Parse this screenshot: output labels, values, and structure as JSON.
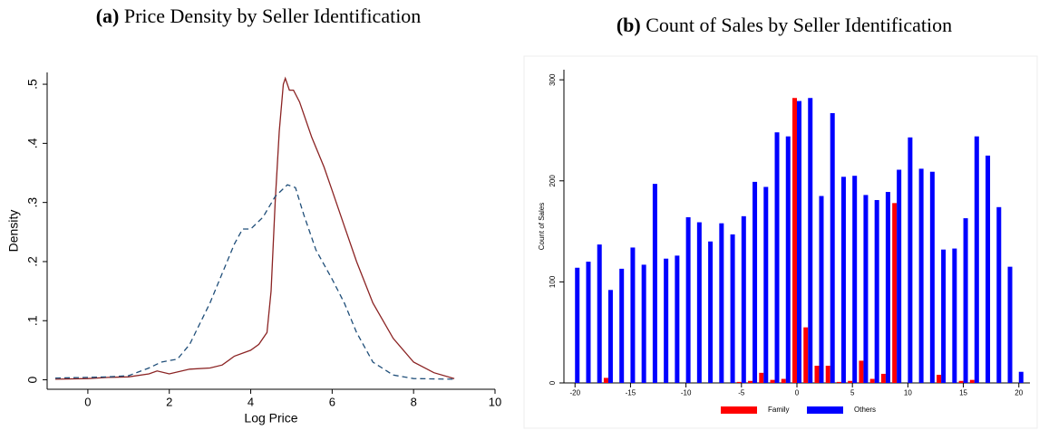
{
  "chart_data": [
    {
      "type": "line",
      "panel_label": "(a)",
      "title": "Price Density by Seller Identification",
      "x_label": "Log Price",
      "y_label": "Density",
      "xlim": [
        -1,
        10
      ],
      "ylim": [
        -0.016,
        0.52
      ],
      "xticks": [
        0,
        2,
        4,
        6,
        8,
        10
      ],
      "yticks": [
        0,
        {
          "value": 0.1,
          "label": ".1"
        },
        {
          "value": 0.2,
          "label": ".2"
        },
        {
          "value": 0.3,
          "label": ".3"
        },
        {
          "value": 0.4,
          "label": ".4"
        },
        {
          "value": 0.5,
          "label": ".5"
        }
      ],
      "series": [
        {
          "color": "#8b2323",
          "dash": false,
          "x": [
            -0.8,
            0,
            0.5,
            1,
            1.5,
            1.7,
            2,
            2.5,
            3,
            3.3,
            3.6,
            4,
            4.2,
            4.4,
            4.5,
            4.6,
            4.7,
            4.8,
            4.85,
            4.95,
            5.05,
            5.2,
            5.5,
            5.8,
            6,
            6.3,
            6.6,
            7,
            7.5,
            8,
            8.5,
            9
          ],
          "values": [
            0.001,
            0.002,
            0.004,
            0.005,
            0.01,
            0.015,
            0.01,
            0.018,
            0.02,
            0.025,
            0.04,
            0.05,
            0.06,
            0.08,
            0.15,
            0.3,
            0.42,
            0.5,
            0.51,
            0.49,
            0.49,
            0.47,
            0.41,
            0.36,
            0.32,
            0.26,
            0.2,
            0.13,
            0.07,
            0.03,
            0.012,
            0.002
          ]
        },
        {
          "color": "#1f4e79",
          "dash": true,
          "x": [
            -0.8,
            0,
            0.5,
            1,
            1.5,
            1.8,
            2.2,
            2.5,
            3,
            3.3,
            3.6,
            3.8,
            4,
            4.3,
            4.6,
            4.9,
            5.1,
            5.3,
            5.6,
            6,
            6.3,
            6.6,
            7,
            7.5,
            8,
            9
          ],
          "values": [
            0.003,
            0.004,
            0.005,
            0.007,
            0.02,
            0.03,
            0.035,
            0.06,
            0.13,
            0.18,
            0.23,
            0.255,
            0.255,
            0.275,
            0.31,
            0.33,
            0.325,
            0.28,
            0.22,
            0.17,
            0.13,
            0.08,
            0.03,
            0.008,
            0.002,
            0.001
          ]
        }
      ]
    },
    {
      "type": "bar",
      "panel_label": "(b)",
      "title": "Count of Sales by Seller Identification",
      "y_label": "Count of Sales",
      "xlim": [
        -21,
        21
      ],
      "ylim": [
        0,
        310
      ],
      "xticks": [
        -20,
        -15,
        -10,
        -5,
        0,
        5,
        10,
        15,
        20
      ],
      "yticks": [
        0,
        100,
        200,
        300
      ],
      "x": [
        -20,
        -19,
        -18,
        -17,
        -16,
        -15,
        -14,
        -13,
        -12,
        -11,
        -10,
        -9,
        -8,
        -7,
        -6,
        -5,
        -4,
        -3,
        -2,
        -1,
        0,
        1,
        2,
        3,
        4,
        5,
        6,
        7,
        8,
        9,
        10,
        11,
        12,
        13,
        14,
        15,
        16,
        17,
        18,
        19,
        20
      ],
      "series": [
        {
          "name": "Family",
          "color": "#ff0000",
          "values": [
            0,
            0,
            0,
            5,
            0,
            0,
            0,
            0,
            0,
            0,
            0,
            0,
            0,
            0,
            0,
            1,
            2,
            10,
            3,
            4,
            282,
            55,
            17,
            17,
            1,
            2,
            22,
            4,
            9,
            178,
            0,
            0,
            0,
            8,
            0,
            2,
            3,
            0,
            0,
            0,
            0
          ]
        },
        {
          "name": "Others",
          "color": "#0000ff",
          "values": [
            114,
            120,
            137,
            92,
            113,
            134,
            117,
            197,
            123,
            126,
            164,
            159,
            140,
            158,
            147,
            165,
            199,
            194,
            248,
            244,
            279,
            282,
            185,
            267,
            204,
            205,
            186,
            181,
            189,
            211,
            243,
            212,
            209,
            132,
            133,
            163,
            244,
            225,
            174,
            115,
            11
          ]
        }
      ]
    }
  ]
}
